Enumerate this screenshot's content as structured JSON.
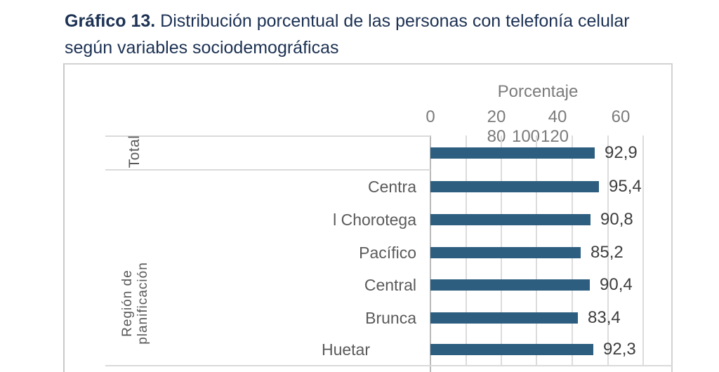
{
  "title": {
    "bold": "Gráfico 13.",
    "rest_line1": " Distribución porcentual de las personas con telefonía celular",
    "line2": "según variables sociodemográficas"
  },
  "axis": {
    "title": "Porcentaje",
    "row1": [
      "0",
      "20",
      "40",
      "60"
    ],
    "row2": [
      "80",
      "100",
      "120"
    ]
  },
  "groups": {
    "total": "Total",
    "region_line1": "Región de",
    "region_line2": "planificación"
  },
  "chart_data": {
    "type": "bar",
    "orientation": "horizontal",
    "title": "Porcentaje",
    "xlabel": "Porcentaje",
    "x_ticks": [
      0,
      20,
      40,
      60,
      80,
      100,
      120
    ],
    "xlim": [
      0,
      137
    ],
    "grid": true,
    "bar_color": "#2d5e7f",
    "value_format": "comma-decimal",
    "rows": [
      {
        "group": "Total",
        "label": "",
        "value": 92.9,
        "display": "92,9"
      },
      {
        "group": "Región de planificación",
        "label": "Centra",
        "value": 95.4,
        "display": "95,4"
      },
      {
        "group": "Región de planificación",
        "label": "l Chorotega",
        "value": 90.8,
        "display": "90,8"
      },
      {
        "group": "Región de planificación",
        "label": "Pacífico",
        "value": 85.2,
        "display": "85,2"
      },
      {
        "group": "Región de planificación",
        "label": "Central",
        "value": 90.4,
        "display": "90,4"
      },
      {
        "group": "Región de planificación",
        "label": "Brunca",
        "value": 83.4,
        "display": "83,4"
      },
      {
        "group": "Región de planificación",
        "label": "Huetar",
        "value": 92.3,
        "display": "92,3"
      }
    ]
  }
}
